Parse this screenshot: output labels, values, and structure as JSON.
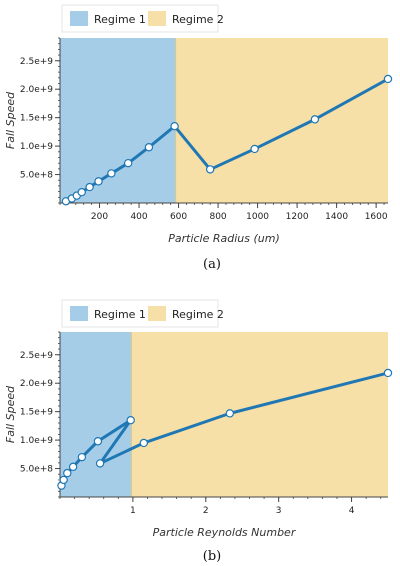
{
  "chart_data": [
    {
      "type": "line",
      "caption": "(a)",
      "xlabel": "Particle Radius (um)",
      "ylabel": "Fall Speed",
      "xlim": [
        0,
        1660
      ],
      "ylim": [
        0,
        2900000000
      ],
      "xticks": [
        200,
        400,
        600,
        800,
        1000,
        1200,
        1400,
        1600
      ],
      "xtick_labels": [
        "200",
        "400",
        "600",
        "800",
        "1000",
        "1200",
        "1400",
        "1600"
      ],
      "yticks": [
        500000000,
        1000000000,
        1500000000,
        2000000000,
        2500000000
      ],
      "ytick_labels": [
        "5.0e+8",
        "1.0e+9",
        "1.5e+9",
        "2.0e+9",
        "2.5e+9"
      ],
      "legend": {
        "placement": "top-left",
        "entries": [
          {
            "label": "Regime 1",
            "color": "#a6cde8"
          },
          {
            "label": "Regime 2",
            "color": "#f7dfa8"
          }
        ]
      },
      "regions": [
        {
          "name": "Regime 1",
          "x_range": [
            0,
            585
          ],
          "color": "#a6cde8"
        },
        {
          "name": "Regime 2",
          "x_range": [
            585,
            1660
          ],
          "color": "#f7dfa8"
        }
      ],
      "series": [
        {
          "color": "#1f77b4",
          "x": [
            30,
            60,
            85,
            110,
            150,
            195,
            260,
            345,
            450,
            580,
            760,
            985,
            1290,
            1660
          ],
          "y": [
            30000000,
            80000000,
            130000000,
            190000000,
            280000000,
            380000000,
            520000000,
            700000000,
            980000000,
            1350000000,
            590000000,
            950000000,
            1470000000,
            2180000000
          ]
        }
      ]
    },
    {
      "type": "line",
      "caption": "(b)",
      "xlabel": "Particle Reynolds Number",
      "ylabel": "Fall Speed",
      "xlim": [
        0,
        4.5
      ],
      "ylim": [
        0,
        2900000000
      ],
      "xticks": [
        1,
        2,
        3,
        4
      ],
      "xtick_labels": [
        "1",
        "2",
        "3",
        "4"
      ],
      "yticks": [
        500000000,
        1000000000,
        1500000000,
        2000000000,
        2500000000
      ],
      "ytick_labels": [
        "5.0e+8",
        "1.0e+9",
        "1.5e+9",
        "2.0e+9",
        "2.5e+9"
      ],
      "legend": {
        "placement": "top-left",
        "entries": [
          {
            "label": "Regime 1",
            "color": "#a6cde8"
          },
          {
            "label": "Regime 2",
            "color": "#f7dfa8"
          }
        ]
      },
      "regions": [
        {
          "name": "Regime 1",
          "x_range": [
            0,
            0.98
          ],
          "color": "#a6cde8"
        },
        {
          "name": "Regime 2",
          "x_range": [
            0.98,
            4.5
          ],
          "color": "#f7dfa8"
        }
      ],
      "series": [
        {
          "color": "#1f77b4",
          "x": [
            0.02,
            0.05,
            0.1,
            0.18,
            0.3,
            0.52,
            0.97,
            0.55,
            1.15,
            2.33,
            4.5
          ],
          "y": [
            200000000,
            300000000,
            420000000,
            530000000,
            700000000,
            980000000,
            1350000000,
            590000000,
            950000000,
            1470000000,
            2180000000
          ]
        }
      ]
    }
  ]
}
